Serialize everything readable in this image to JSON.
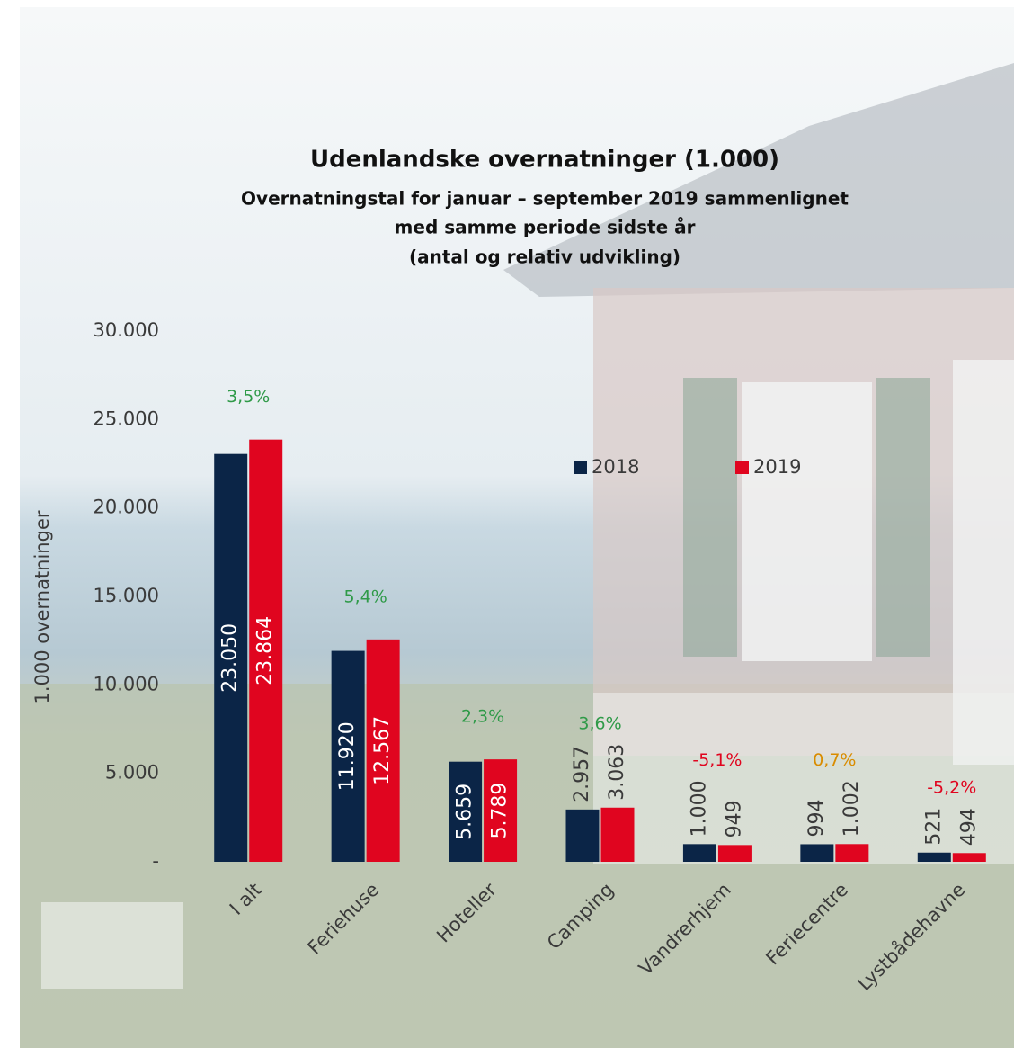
{
  "chart_data": {
    "type": "bar",
    "title": "Udenlandske overnatninger (1.000)",
    "subtitle": [
      "Overnatningstal for januar – september 2019 sammenlignet",
      "med samme periode sidste år",
      "(antal og relativ udvikling)"
    ],
    "y_label": "1.000 overnatninger",
    "categories": [
      "I alt",
      "Feriehuse",
      "Hoteller",
      "Camping",
      "Vandrerhjem",
      "Feriecentre",
      "Lystbådehavne"
    ],
    "series": [
      {
        "name": "2018",
        "color": "#0b2547",
        "values": [
          23050,
          11920,
          5659,
          2957,
          1000,
          994,
          521
        ],
        "value_labels": [
          "23.050",
          "11.920",
          "5.659",
          "2.957",
          "1.000",
          "994",
          "521"
        ]
      },
      {
        "name": "2019",
        "color": "#e0051f",
        "values": [
          23864,
          12567,
          5789,
          3063,
          949,
          1002,
          494
        ],
        "value_labels": [
          "23.864",
          "12.567",
          "5.789",
          "3.063",
          "949",
          "1.002",
          "494"
        ]
      }
    ],
    "change_labels": [
      "3,5%",
      "5,4%",
      "2,3%",
      "3,6%",
      "-5,1%",
      "0,7%",
      "-5,2%"
    ],
    "change_colors": [
      "#2f9a48",
      "#2f9a48",
      "#2f9a48",
      "#2f9a48",
      "#e0051f",
      "#d98c00",
      "#e0051f"
    ],
    "ylim": [
      0,
      30000
    ],
    "yticks": [
      {
        "value": 0,
        "label": "-"
      },
      {
        "value": 5000,
        "label": "5.000"
      },
      {
        "value": 10000,
        "label": "10.000"
      },
      {
        "value": 15000,
        "label": "15.000"
      },
      {
        "value": 20000,
        "label": "20.000"
      },
      {
        "value": 25000,
        "label": "25.000"
      },
      {
        "value": 30000,
        "label": "30.000"
      }
    ],
    "grid": false
  }
}
